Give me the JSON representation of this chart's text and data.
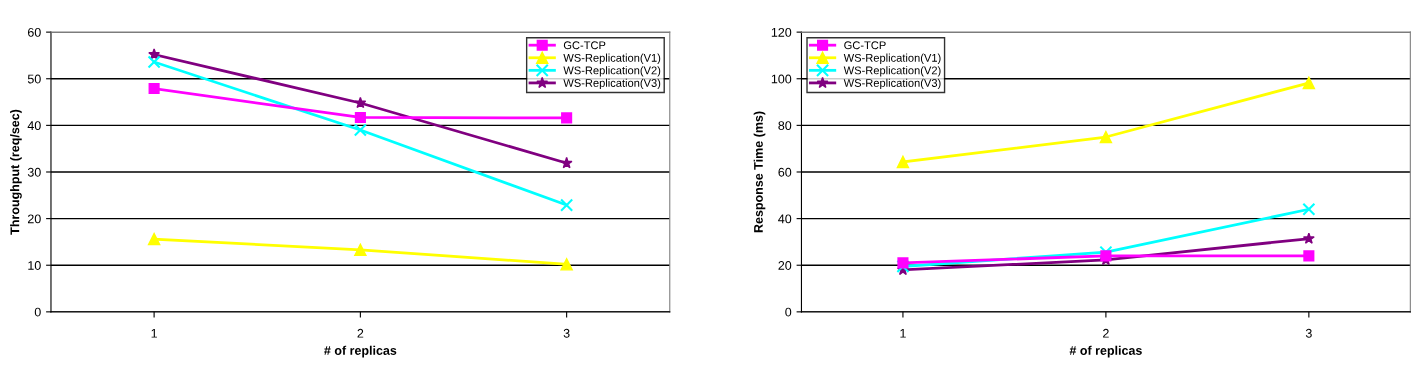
{
  "chart_data": [
    {
      "type": "line",
      "xlabel": "# of replicas",
      "ylabel": "Throughput (req/sec)",
      "x": [
        1,
        2,
        3
      ],
      "xlim": [
        0.5,
        3.5
      ],
      "xticks": [
        1,
        2,
        3
      ],
      "ylim": [
        0,
        60
      ],
      "yticks": [
        0,
        10,
        20,
        30,
        40,
        50,
        60
      ],
      "grid": "y",
      "legend": "top right",
      "series": [
        {
          "name": "GC-TCP",
          "color": "#ff00ff",
          "marker": "square",
          "values": [
            47.9,
            41.7,
            41.6
          ]
        },
        {
          "name": "WS-Replication(V1)",
          "color": "#ffff00",
          "marker": "triangle",
          "values": [
            15.6,
            13.3,
            10.2
          ]
        },
        {
          "name": "WS-Replication(V2)",
          "color": "#00ffff",
          "marker": "cross",
          "values": [
            53.6,
            39,
            22.9
          ]
        },
        {
          "name": "WS-Replication(V3)",
          "color": "#800080",
          "marker": "star",
          "values": [
            55.2,
            44.8,
            31.9
          ]
        }
      ]
    },
    {
      "type": "line",
      "xlabel": "# of replicas",
      "ylabel": "Response Time (ms)",
      "x": [
        1,
        2,
        3
      ],
      "xlim": [
        0.5,
        3.5
      ],
      "xticks": [
        1,
        2,
        3
      ],
      "ylim": [
        0,
        120
      ],
      "yticks": [
        0,
        20,
        40,
        60,
        80,
        100,
        120
      ],
      "grid": "y",
      "legend": "top left",
      "series": [
        {
          "name": "GC-TCP",
          "color": "#ff00ff",
          "marker": "square",
          "values": [
            21,
            24,
            24
          ]
        },
        {
          "name": "WS-Replication(V1)",
          "color": "#ffff00",
          "marker": "triangle",
          "values": [
            64.3,
            75,
            98.2
          ]
        },
        {
          "name": "WS-Replication(V2)",
          "color": "#00ffff",
          "marker": "cross",
          "values": [
            19.5,
            25.6,
            44
          ]
        },
        {
          "name": "WS-Replication(V3)",
          "color": "#800080",
          "marker": "star",
          "values": [
            18,
            22.3,
            31.4
          ]
        }
      ]
    }
  ]
}
